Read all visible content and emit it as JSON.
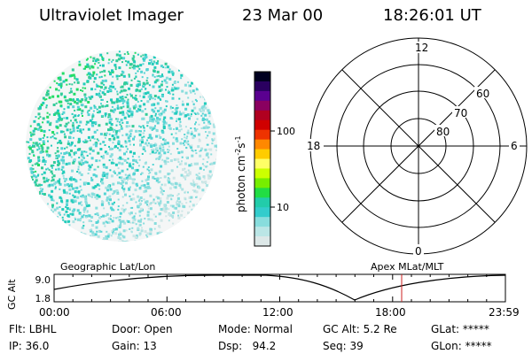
{
  "header": {
    "instrument": "Ultraviolet Imager",
    "date": "23 Mar 00",
    "time": "18:26:01 UT"
  },
  "colorbar": {
    "unit_label": "photon cm",
    "unit_exp1": "-2",
    "unit_s": "s",
    "unit_exp2": "-1",
    "tick_100": "100",
    "tick_10": "10",
    "colors": [
      "#000020",
      "#2a0060",
      "#5a0090",
      "#8a0060",
      "#b00020",
      "#d00000",
      "#ee3300",
      "#ff8800",
      "#ffcc00",
      "#ffff66",
      "#ccff00",
      "#77ee00",
      "#22dd44",
      "#22ccaa",
      "#33cccc",
      "#88dddd",
      "#bbe6e6",
      "#dde8e8"
    ]
  },
  "polar_plot": {
    "labels": {
      "top": "12",
      "left": "18",
      "right": "6",
      "bottom": "0"
    },
    "rings": [
      "60",
      "70",
      "80"
    ]
  },
  "timeline": {
    "left_title": "Geographic Lat/Lon",
    "right_title": "Apex MLat/MLT",
    "axis_title": "GC Alt",
    "y_top": "9.0",
    "y_bottom": "1.8",
    "x_ticks": [
      "00:00",
      "06:00",
      "12:00",
      "18:00",
      "23:59"
    ],
    "marker_time": "18:26"
  },
  "status": {
    "flt": "Flt: LBHL",
    "ip": "IP: 36.0",
    "door": "Door: Open",
    "gain": "Gain: 13",
    "mode": "Mode: Normal",
    "dsp": "Dsp:   94.2",
    "gc_alt": "GC Alt: 5.2 Re",
    "seq": "Seq: 39",
    "glat": "GLat: *****",
    "glon": "GLon: *****"
  }
}
